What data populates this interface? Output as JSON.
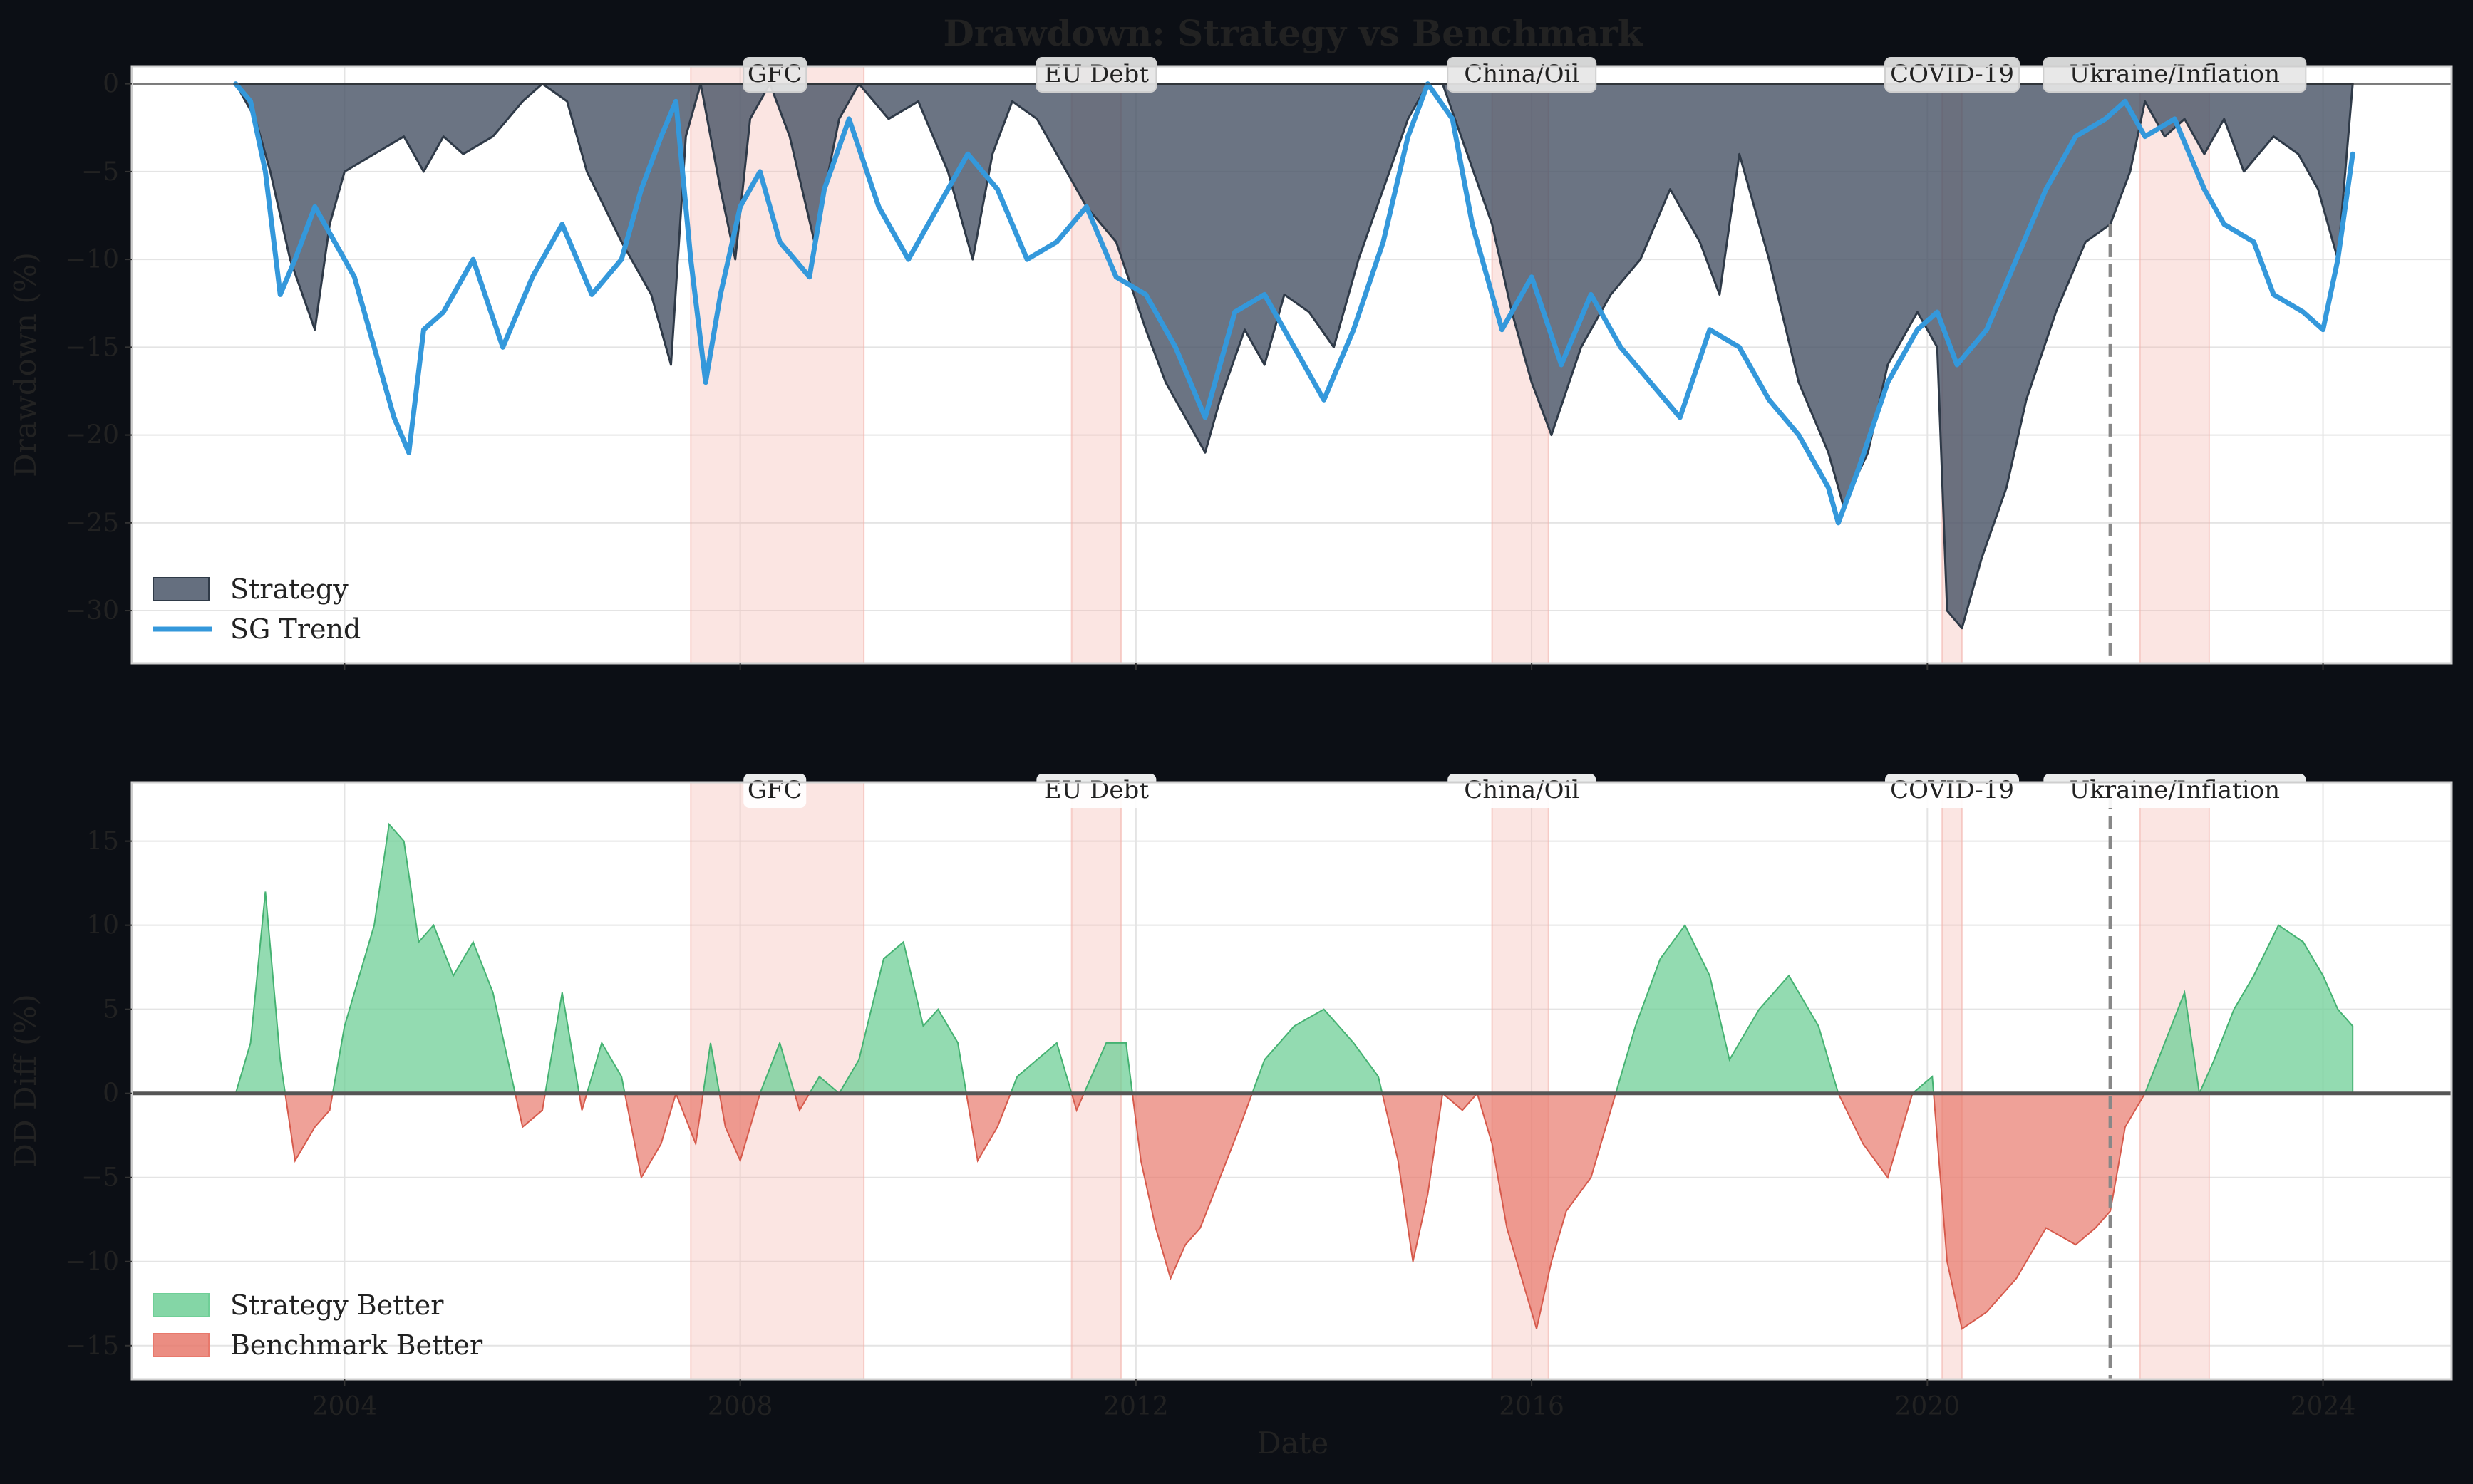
{
  "figure": {
    "title": "Drawdown: Strategy vs Benchmark",
    "xlabel": "Date",
    "background": "#0c0f15",
    "axes_face": "#ffffff",
    "dim_text": "#222222"
  },
  "colors": {
    "strategy": "#4a5668",
    "benchmark": "#3498db",
    "better": "#6fcf97",
    "worse": "#e8796c",
    "crisis": "#f4b4ad"
  },
  "crises": [
    {
      "label": "GFC",
      "start": 2007.5,
      "end": 2009.25
    },
    {
      "label": "EU Debt",
      "start": 2011.35,
      "end": 2011.85
    },
    {
      "label": "China/Oil",
      "start": 2015.6,
      "end": 2016.17
    },
    {
      "label": "COVID-19",
      "start": 2020.15,
      "end": 2020.35
    },
    {
      "label": "Ukraine/Inflation",
      "start": 2022.15,
      "end": 2022.85
    }
  ],
  "split_marker": 2021.85,
  "chart_data": [
    {
      "type": "area",
      "ylabel": "Drawdown (%)",
      "xlim": [
        2001.85,
        2025.3
      ],
      "ylim": [
        -33,
        1
      ],
      "xticks": [
        2004,
        2008,
        2012,
        2016,
        2020,
        2024
      ],
      "yticks": [
        0,
        -5,
        -10,
        -15,
        -20,
        -25,
        -30
      ],
      "grid": true,
      "legend_placement": "lower-left",
      "legend": [
        "Strategy",
        "SG Trend"
      ],
      "series": [
        {
          "name": "Strategy",
          "kind": "area",
          "x": [
            2002.9,
            2003.1,
            2003.25,
            2003.45,
            2003.7,
            2003.85,
            2004.0,
            2004.3,
            2004.6,
            2004.8,
            2005.0,
            2005.2,
            2005.5,
            2005.8,
            2006.0,
            2006.25,
            2006.45,
            2006.8,
            2007.1,
            2007.3,
            2007.45,
            2007.6,
            2007.8,
            2007.95,
            2008.1,
            2008.3,
            2008.5,
            2008.75,
            2009.0,
            2009.2,
            2009.5,
            2009.8,
            2010.1,
            2010.35,
            2010.55,
            2010.75,
            2011.0,
            2011.3,
            2011.5,
            2011.8,
            2012.1,
            2012.3,
            2012.5,
            2012.7,
            2012.85,
            2013.1,
            2013.3,
            2013.5,
            2013.75,
            2014.0,
            2014.25,
            2014.5,
            2014.75,
            2014.95,
            2015.1,
            2015.35,
            2015.6,
            2015.8,
            2016.0,
            2016.2,
            2016.5,
            2016.8,
            2017.1,
            2017.4,
            2017.7,
            2017.9,
            2018.1,
            2018.4,
            2018.7,
            2019.0,
            2019.15,
            2019.4,
            2019.6,
            2019.9,
            2020.1,
            2020.2,
            2020.35,
            2020.55,
            2020.8,
            2021.0,
            2021.3,
            2021.6,
            2021.85,
            2022.05,
            2022.2,
            2022.4,
            2022.6,
            2022.8,
            2023.0,
            2023.2,
            2023.5,
            2023.75,
            2023.95,
            2024.15,
            2024.3
          ],
          "y": [
            0,
            -2,
            -5,
            -10,
            -14,
            -8,
            -5,
            -4,
            -3,
            -5,
            -3,
            -4,
            -3,
            -1,
            0,
            -1,
            -5,
            -9,
            -12,
            -16,
            -3,
            0,
            -6,
            -10,
            -2,
            0,
            -3,
            -9,
            -2,
            0,
            -2,
            -1,
            -5,
            -10,
            -4,
            -1,
            -2,
            -5,
            -7,
            -9,
            -14,
            -17,
            -19,
            -21,
            -18,
            -14,
            -16,
            -12,
            -13,
            -15,
            -10,
            -6,
            -2,
            0,
            0,
            -4,
            -8,
            -13,
            -17,
            -20,
            -15,
            -12,
            -10,
            -6,
            -9,
            -12,
            -4,
            -10,
            -17,
            -21,
            -24,
            -21,
            -16,
            -13,
            -15,
            -30,
            -31,
            -27,
            -23,
            -18,
            -13,
            -9,
            -8,
            -5,
            -1,
            -3,
            -2,
            -4,
            -2,
            -5,
            -3,
            -4,
            -6,
            -10,
            0
          ]
        },
        {
          "name": "SG Trend",
          "kind": "line",
          "x": [
            2002.9,
            2003.05,
            2003.2,
            2003.35,
            2003.5,
            2003.7,
            2003.9,
            2004.1,
            2004.3,
            2004.5,
            2004.65,
            2004.8,
            2005.0,
            2005.3,
            2005.6,
            2005.9,
            2006.2,
            2006.5,
            2006.8,
            2007.0,
            2007.2,
            2007.35,
            2007.5,
            2007.65,
            2007.8,
            2008.0,
            2008.2,
            2008.4,
            2008.7,
            2008.85,
            2009.1,
            2009.4,
            2009.7,
            2010.0,
            2010.3,
            2010.6,
            2010.9,
            2011.2,
            2011.5,
            2011.8,
            2012.1,
            2012.4,
            2012.7,
            2013.0,
            2013.3,
            2013.6,
            2013.9,
            2014.2,
            2014.5,
            2014.75,
            2014.95,
            2015.2,
            2015.4,
            2015.7,
            2016.0,
            2016.3,
            2016.6,
            2016.9,
            2017.2,
            2017.5,
            2017.8,
            2018.1,
            2018.4,
            2018.7,
            2019.0,
            2019.1,
            2019.3,
            2019.6,
            2019.9,
            2020.1,
            2020.3,
            2020.6,
            2020.9,
            2021.2,
            2021.5,
            2021.8,
            2022.0,
            2022.2,
            2022.5,
            2022.8,
            2023.0,
            2023.3,
            2023.5,
            2023.8,
            2024.0,
            2024.15,
            2024.3
          ],
          "y": [
            0,
            -1,
            -5,
            -12,
            -10,
            -7,
            -9,
            -11,
            -15,
            -19,
            -21,
            -14,
            -13,
            -10,
            -15,
            -11,
            -8,
            -12,
            -10,
            -6,
            -3,
            -1,
            -10,
            -17,
            -12,
            -7,
            -5,
            -9,
            -11,
            -6,
            -2,
            -7,
            -10,
            -7,
            -4,
            -6,
            -10,
            -9,
            -7,
            -11,
            -12,
            -15,
            -19,
            -13,
            -12,
            -15,
            -18,
            -14,
            -9,
            -3,
            0,
            -2,
            -8,
            -14,
            -11,
            -16,
            -12,
            -15,
            -17,
            -19,
            -14,
            -15,
            -18,
            -20,
            -23,
            -25,
            -22,
            -17,
            -14,
            -13,
            -16,
            -14,
            -10,
            -6,
            -3,
            -2,
            -1,
            -3,
            -2,
            -6,
            -8,
            -9,
            -12,
            -13,
            -14,
            -10,
            -4
          ]
        }
      ]
    },
    {
      "type": "area",
      "ylabel": "DD Diff (%)",
      "xlabel": "Date",
      "xlim": [
        2001.85,
        2025.3
      ],
      "ylim": [
        -17,
        18.5
      ],
      "xticks": [
        2004,
        2008,
        2012,
        2016,
        2020,
        2024
      ],
      "yticks": [
        15,
        10,
        5,
        0,
        -5,
        -10,
        -15
      ],
      "grid": true,
      "legend_placement": "lower-left",
      "legend": [
        "Strategy Better",
        "Benchmark Better"
      ],
      "series": [
        {
          "name": "DD Diff",
          "kind": "signed-area",
          "x": [
            2002.9,
            2003.05,
            2003.2,
            2003.35,
            2003.5,
            2003.7,
            2003.85,
            2004.0,
            2004.1,
            2004.3,
            2004.45,
            2004.6,
            2004.75,
            2004.9,
            2005.1,
            2005.3,
            2005.5,
            2005.65,
            2005.8,
            2006.0,
            2006.2,
            2006.4,
            2006.6,
            2006.8,
            2007.0,
            2007.2,
            2007.35,
            2007.55,
            2007.7,
            2007.85,
            2008.0,
            2008.2,
            2008.4,
            2008.6,
            2008.8,
            2009.0,
            2009.2,
            2009.45,
            2009.65,
            2009.85,
            2010.0,
            2010.2,
            2010.4,
            2010.6,
            2010.8,
            2011.0,
            2011.2,
            2011.4,
            2011.55,
            2011.7,
            2011.9,
            2012.05,
            2012.2,
            2012.35,
            2012.5,
            2012.65,
            2012.85,
            2013.05,
            2013.3,
            2013.6,
            2013.9,
            2014.2,
            2014.45,
            2014.65,
            2014.8,
            2014.95,
            2015.1,
            2015.3,
            2015.45,
            2015.6,
            2015.75,
            2015.9,
            2016.05,
            2016.2,
            2016.35,
            2016.6,
            2016.85,
            2017.05,
            2017.3,
            2017.55,
            2017.8,
            2018.0,
            2018.3,
            2018.6,
            2018.9,
            2019.1,
            2019.35,
            2019.6,
            2019.85,
            2020.05,
            2020.2,
            2020.35,
            2020.6,
            2020.9,
            2021.2,
            2021.5,
            2021.7,
            2021.85,
            2022.0,
            2022.2,
            2022.4,
            2022.6,
            2022.75,
            2022.9,
            2023.1,
            2023.3,
            2023.55,
            2023.8,
            2024.0,
            2024.15,
            2024.3
          ],
          "y": [
            0,
            3,
            12,
            2,
            -4,
            -2,
            -1,
            4,
            6,
            10,
            16,
            15,
            9,
            10,
            7,
            9,
            6,
            2,
            -2,
            -1,
            6,
            -1,
            3,
            1,
            -5,
            -3,
            0,
            -3,
            3,
            -2,
            -4,
            0,
            3,
            -1,
            1,
            0,
            2,
            8,
            9,
            4,
            5,
            3,
            -4,
            -2,
            1,
            2,
            3,
            -1,
            1,
            3,
            3,
            -4,
            -8,
            -11,
            -9,
            -8,
            -5,
            -2,
            2,
            4,
            5,
            3,
            1,
            -4,
            -10,
            -6,
            0,
            -1,
            0,
            -3,
            -8,
            -11,
            -14,
            -10,
            -7,
            -5,
            0,
            4,
            8,
            10,
            7,
            2,
            5,
            7,
            4,
            0,
            -3,
            -5,
            0,
            1,
            -10,
            -14,
            -13,
            -11,
            -8,
            -9,
            -8,
            -7,
            -2,
            0,
            3,
            6,
            0,
            2,
            5,
            7,
            10,
            9,
            7,
            5,
            4
          ]
        }
      ]
    }
  ]
}
